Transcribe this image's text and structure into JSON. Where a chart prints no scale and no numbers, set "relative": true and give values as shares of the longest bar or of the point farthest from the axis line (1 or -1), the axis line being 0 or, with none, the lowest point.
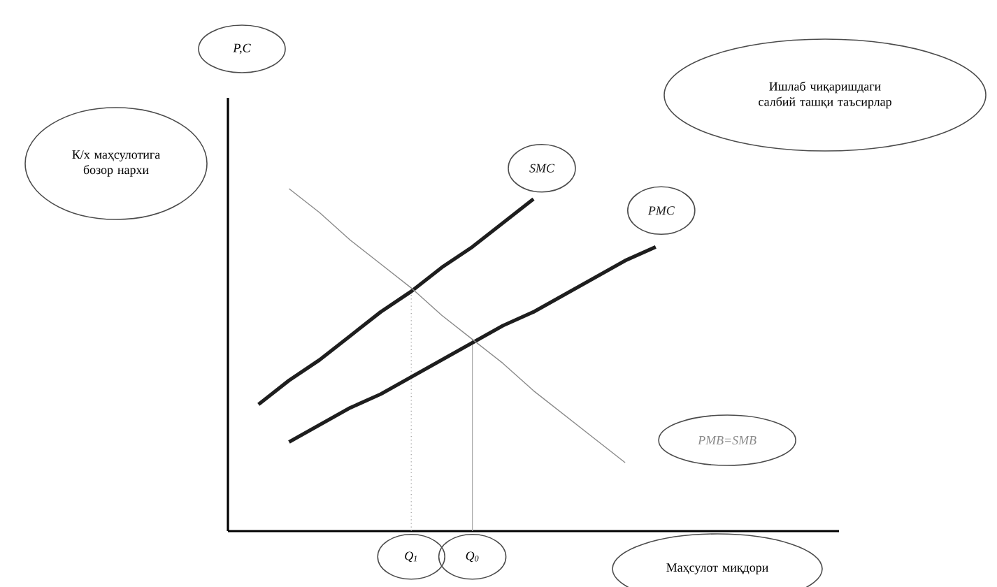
{
  "chart_data": {
    "type": "line",
    "relative": true,
    "xlabel": "Маҳсулот миқдори",
    "annotations": [
      "К/х маҳсулотига бозор нархи",
      "Ишлаб чиқаришдаги салбий ташқи таъсирлар",
      "P,C"
    ],
    "categories": [
      null,
      null,
      null,
      null,
      null,
      null,
      "Q$_{1}$",
      null,
      "Q$_{0}$",
      null,
      null,
      null,
      null,
      null,
      null,
      null,
      null,
      null,
      null,
      null,
      null
    ],
    "ref_lines": [
      {
        "axis": "x",
        "value": "Q$_{1}$",
        "line_style": "dotted",
        "color": "#9a9a9a"
      },
      {
        "axis": "x",
        "value": "Q$_{0}$",
        "line_style": "solid",
        "color": "#a8a8a8"
      }
    ],
    "series": [
      {
        "name": "SMC",
        "color": "#1e1e1e",
        "values": [
          null,
          0.37,
          0.44,
          0.5,
          0.57,
          0.64,
          0.7,
          0.77,
          0.83,
          0.9,
          0.97,
          null,
          null,
          null,
          null,
          null,
          null,
          null,
          null,
          null,
          null
        ]
      },
      {
        "name": "PMC",
        "color": "#1e1e1e",
        "values": [
          null,
          null,
          0.26,
          0.31,
          0.36,
          0.4,
          0.45,
          0.5,
          0.55,
          0.6,
          0.64,
          0.69,
          0.74,
          0.79,
          0.83,
          null,
          null,
          null,
          null,
          null,
          null
        ]
      },
      {
        "name": "PMB=SMB",
        "color": "#8a8a8a",
        "values": [
          null,
          null,
          1.0,
          0.93,
          0.85,
          0.78,
          0.71,
          0.63,
          0.56,
          0.49,
          0.41,
          0.34,
          0.27,
          0.2,
          null,
          null,
          null,
          null,
          null,
          null,
          null
        ]
      }
    ]
  }
}
